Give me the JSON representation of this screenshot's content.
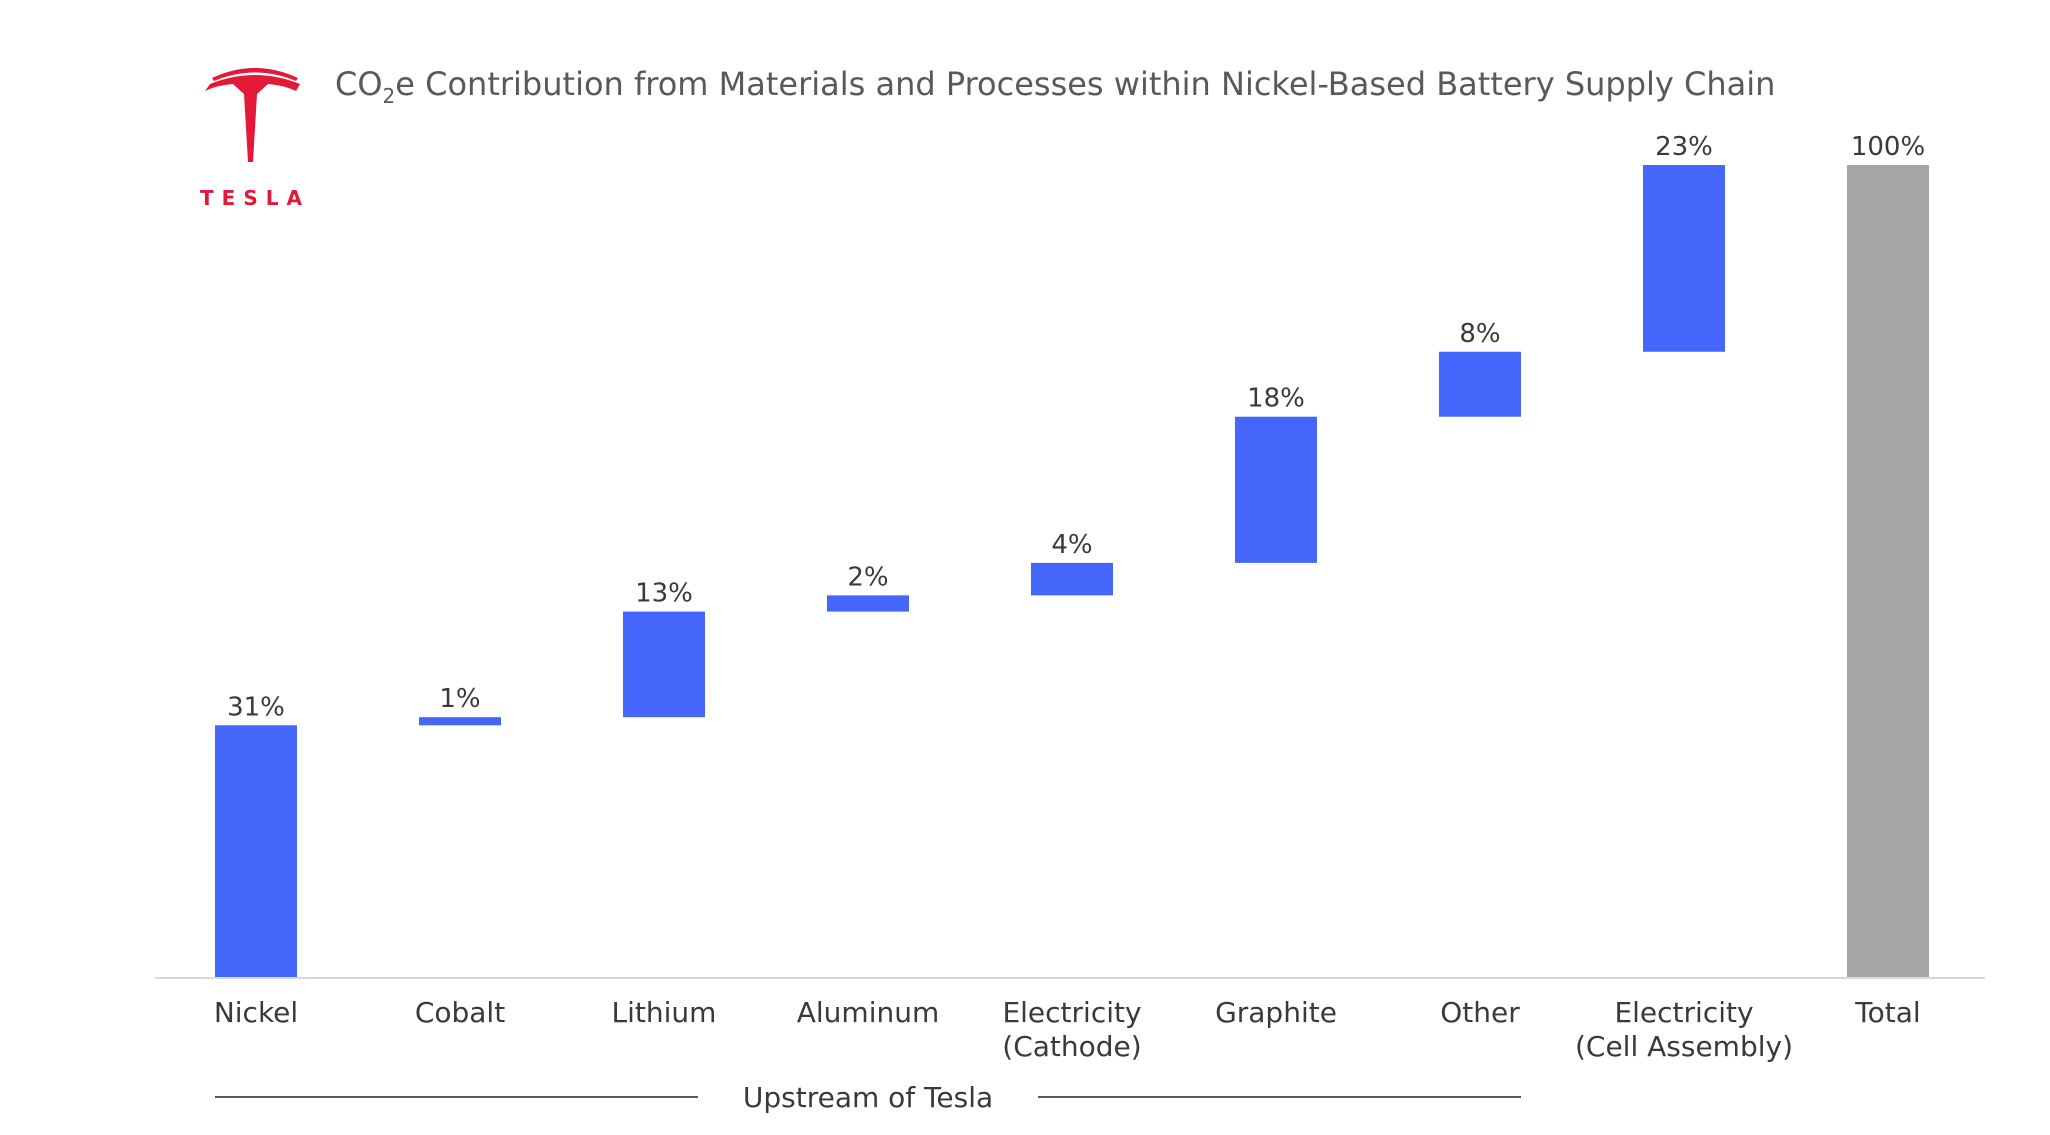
{
  "brand": {
    "wordmark": "TESLA",
    "color": "#e31937"
  },
  "chart_data": {
    "type": "bar",
    "subtype": "waterfall",
    "title": {
      "prefix": "CO",
      "subscript": "2",
      "suffix": "e Contribution from Materials and Processes within Nickel-Based Battery Supply Chain"
    },
    "categories": [
      [
        "Nickel"
      ],
      [
        "Cobalt"
      ],
      [
        "Lithium"
      ],
      [
        "Aluminum"
      ],
      [
        "Electricity",
        "(Cathode)"
      ],
      [
        "Graphite"
      ],
      [
        "Other"
      ],
      [
        "Electricity",
        "(Cell Assembly)"
      ],
      [
        "Total"
      ]
    ],
    "values": [
      31,
      1,
      13,
      2,
      4,
      18,
      8,
      23,
      100
    ],
    "data_labels": [
      "31%",
      "1%",
      "13%",
      "2%",
      "4%",
      "18%",
      "8%",
      "23%",
      "100%"
    ],
    "is_total": [
      false,
      false,
      false,
      false,
      false,
      false,
      false,
      false,
      true
    ],
    "colors": {
      "increment": "#4466fb",
      "total": "#a6a6a6",
      "axis": "#d9d9d9",
      "text": "#3a3a3a",
      "title": "#595959",
      "bracket": "#595959"
    },
    "ylim": [
      0,
      100
    ],
    "grid": false,
    "legend": "none",
    "group_annotation": {
      "label": "Upstream of Tesla",
      "from_index": 0,
      "to_index": 6
    }
  }
}
